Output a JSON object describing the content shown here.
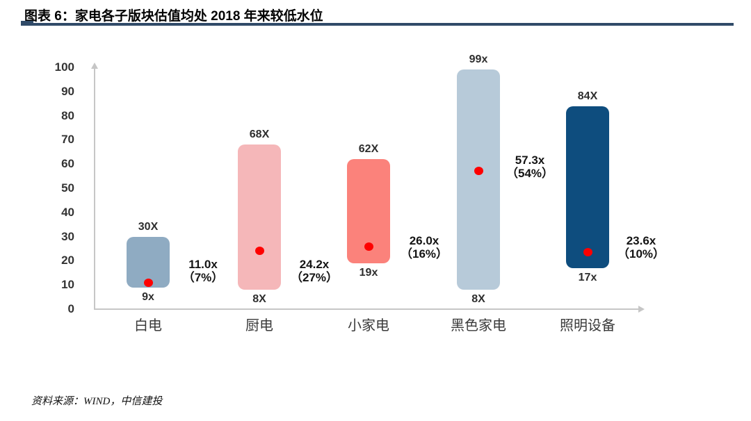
{
  "header": {
    "title": "图表 6：家电各子版块估值均处 2018 年来较低水位"
  },
  "footer": {
    "source": "资料来源：WIND，中信建投"
  },
  "colors": {
    "title_rule": "#304A68",
    "axis": "#C6C6C6",
    "marker": "#FE0000"
  },
  "chart_data": {
    "type": "bar",
    "subtype": "floating-range-bar",
    "title": "家电各子版块估值均处 2018 年来较低水位",
    "xlabel": "",
    "ylabel": "",
    "ylim": [
      0,
      100
    ],
    "grid": false,
    "legend": false,
    "ytick_labels": [
      "0",
      "10",
      "20",
      "30",
      "40",
      "50",
      "60",
      "70",
      "80",
      "90",
      "100"
    ],
    "ytick_values": [
      0,
      10,
      20,
      30,
      40,
      50,
      60,
      70,
      80,
      90,
      100
    ],
    "categories": [
      "白电",
      "厨电",
      "小家电",
      "黑色家电",
      "照明设备"
    ],
    "series": [
      {
        "name": "白电",
        "min": 9,
        "max": 30,
        "current": 11.0,
        "min_label": "9x",
        "max_label": "30X",
        "current_label": "11.0x",
        "pct_label": "（7%）",
        "color": "#8FABC2"
      },
      {
        "name": "厨电",
        "min": 8,
        "max": 68,
        "current": 24.2,
        "min_label": "8X",
        "max_label": "68X",
        "current_label": "24.2x",
        "pct_label": "（27%）",
        "color": "#F5B7B9"
      },
      {
        "name": "小家电",
        "min": 19,
        "max": 62,
        "current": 26.0,
        "min_label": "19x",
        "max_label": "62X",
        "current_label": "26.0x",
        "pct_label": "（16%）",
        "color": "#FB827B"
      },
      {
        "name": "黑色家电",
        "min": 8,
        "max": 99,
        "current": 57.3,
        "min_label": "8X",
        "max_label": "99x",
        "current_label": "57.3x",
        "pct_label": "（54%）",
        "color": "#B7CAD9"
      },
      {
        "name": "照明设备",
        "min": 17,
        "max": 84,
        "current": 23.6,
        "min_label": "17x",
        "max_label": "84X",
        "current_label": "23.6x",
        "pct_label": "（10%）",
        "color": "#0E4D7E"
      }
    ]
  }
}
